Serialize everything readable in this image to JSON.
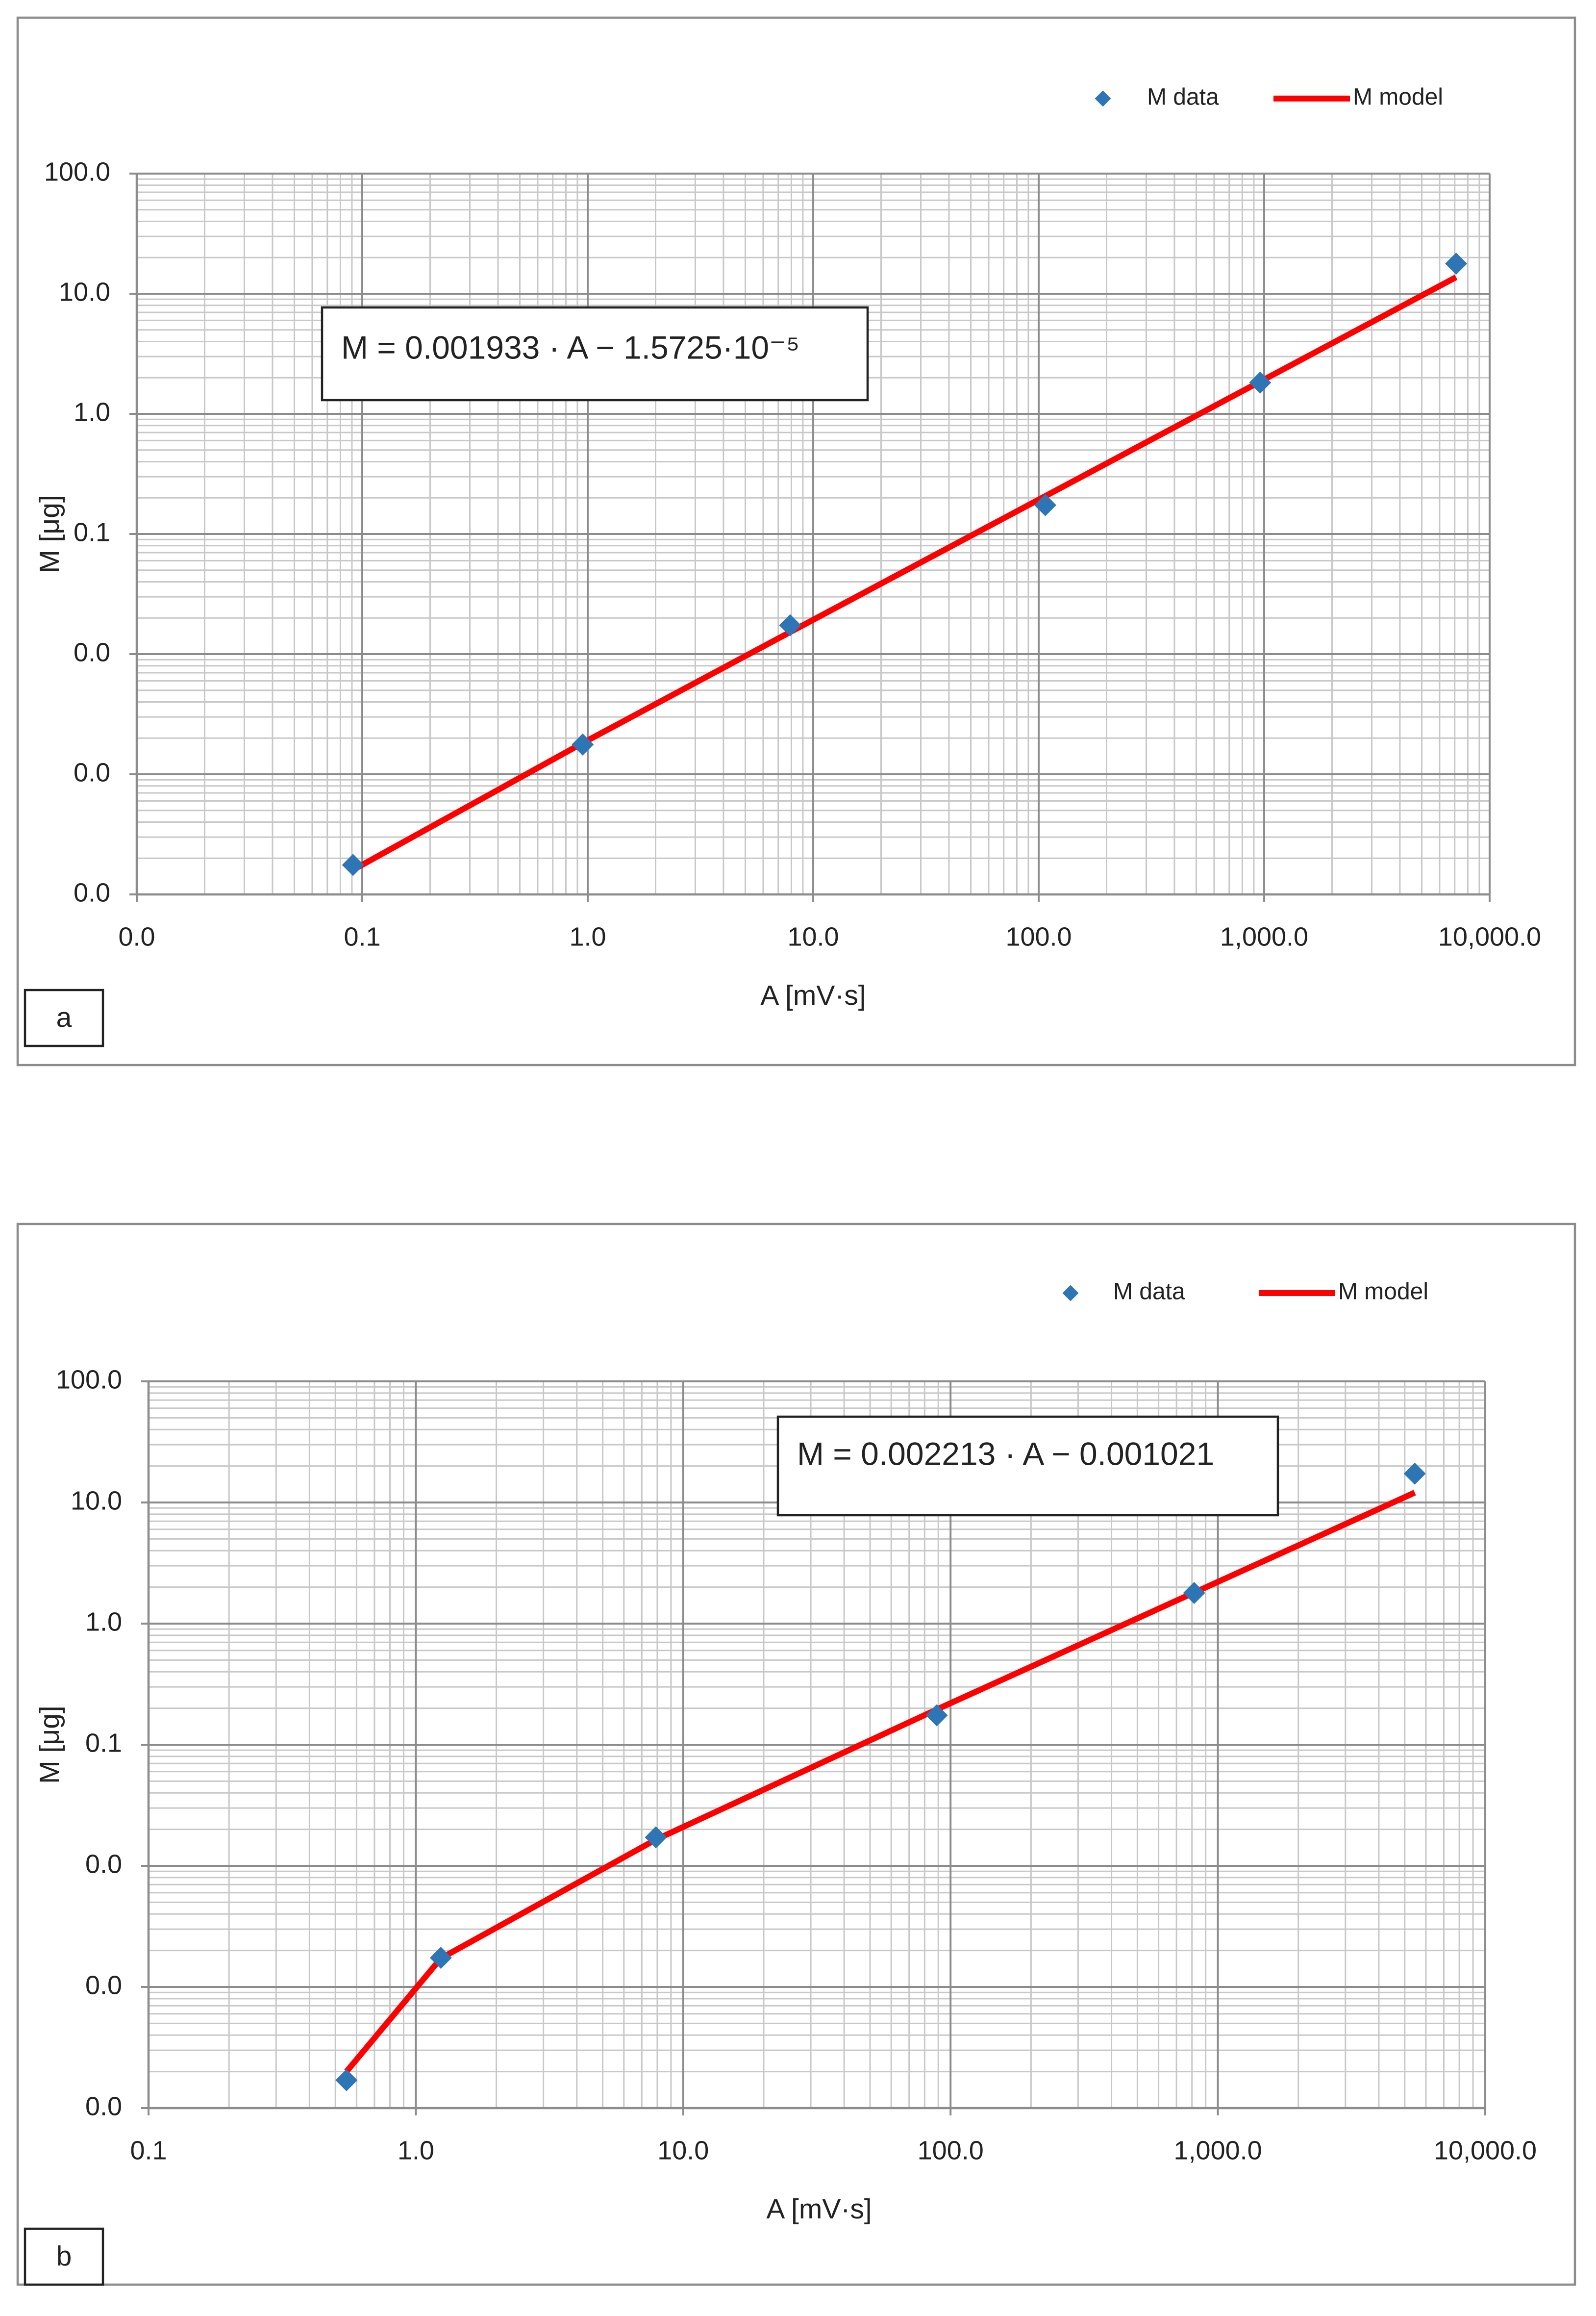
{
  "chart_data": [
    {
      "type": "scatter",
      "panel_label": "a",
      "log_x": true,
      "log_y": true,
      "grid": true,
      "xlabel": "A [mV·s]",
      "ylabel": "M [μg]",
      "annotation": "M = 0.001933 · A − 1.5725·10⁻⁵",
      "xlim": [
        0.01,
        10000
      ],
      "xticks": [
        {
          "value": 0.01,
          "label": "0.0"
        },
        0.1,
        {
          "value": 1,
          "label": "1.0"
        },
        {
          "value": 10,
          "label": "10.0"
        },
        {
          "value": 100,
          "label": "100.0"
        },
        {
          "value": 1000,
          "label": "1,000.0"
        },
        {
          "value": 10000,
          "label": "10,000.0"
        }
      ],
      "ylim": [
        0.0001,
        100
      ],
      "yticks": [
        {
          "value": 0.0001,
          "label": "0.0"
        },
        {
          "value": 0.001,
          "label": "0.0"
        },
        {
          "value": 0.01,
          "label": "0.0"
        },
        0.1,
        {
          "value": 1,
          "label": "1.0"
        },
        {
          "value": 10,
          "label": "10.0"
        },
        {
          "value": 100,
          "label": "100.0"
        }
      ],
      "x": [
        0.091,
        0.95,
        7.9,
        107,
        960,
        7100
      ],
      "series": [
        {
          "name": "M data",
          "type": "scatter",
          "color": "#2e75b6",
          "values": [
            0.000176,
            0.00177,
            0.0174,
            0.174,
            1.82,
            17.8
          ]
        },
        {
          "name": "M model",
          "type": "line",
          "color": "#ff0000",
          "values": [
            0.00016,
            0.00182,
            0.01526,
            0.2068,
            1.8557,
            13.72
          ]
        }
      ]
    },
    {
      "type": "scatter",
      "panel_label": "b",
      "log_x": true,
      "log_y": true,
      "grid": true,
      "xlabel": "A [mV·s]",
      "ylabel": "M [μg]",
      "annotation": "M = 0.002213 · A − 0.001021",
      "xlim": [
        0.1,
        10000
      ],
      "xticks": [
        0.1,
        {
          "value": 1,
          "label": "1.0"
        },
        {
          "value": 10,
          "label": "10.0"
        },
        {
          "value": 100,
          "label": "100.0"
        },
        {
          "value": 1000,
          "label": "1,000.0"
        },
        {
          "value": 10000,
          "label": "10,000.0"
        }
      ],
      "ylim": [
        0.0001,
        100
      ],
      "yticks": [
        {
          "value": 0.0001,
          "label": "0.0"
        },
        {
          "value": 0.001,
          "label": "0.0"
        },
        {
          "value": 0.01,
          "label": "0.0"
        },
        0.1,
        {
          "value": 1,
          "label": "1.0"
        },
        {
          "value": 10,
          "label": "10.0"
        },
        {
          "value": 100,
          "label": "100.0"
        }
      ],
      "x": [
        0.55,
        1.24,
        7.9,
        88.8,
        815,
        5450
      ],
      "series": [
        {
          "name": "M data",
          "type": "scatter",
          "color": "#2e75b6",
          "values": [
            0.00017,
            0.00174,
            0.0172,
            0.175,
            1.79,
            17.3
          ]
        },
        {
          "name": "M model",
          "type": "line",
          "color": "#ff0000",
          "values": [
            0.0002,
            0.001723,
            0.01646,
            0.1955,
            1.8026,
            12.06
          ]
        }
      ]
    }
  ]
}
